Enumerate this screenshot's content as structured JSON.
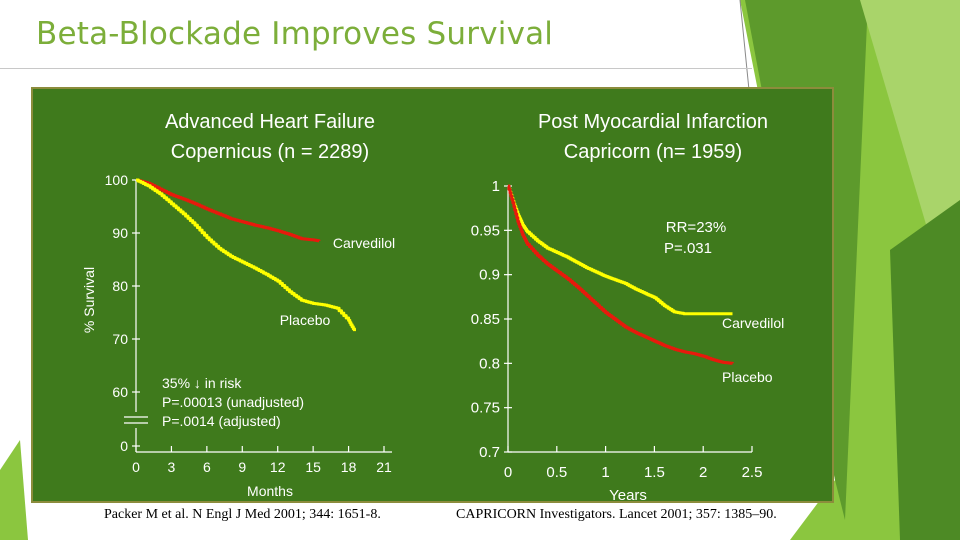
{
  "slide": {
    "title": "Beta-Blockade Improves Survival",
    "colors": {
      "title": "#7cae3a",
      "panel": "#3f7a1c",
      "carvedilol_line": "#e8190c",
      "placebo_line": "#ffff00",
      "text": "#ffffff"
    }
  },
  "chart_data": [
    {
      "type": "line",
      "title": "Advanced Heart Failure",
      "subtitle": "Copernicus (n = 2289)",
      "xlabel": "Months",
      "ylabel": "% Survival",
      "xlim": [
        0,
        21
      ],
      "ylim": [
        60,
        100
      ],
      "axis_break": true,
      "x_ticks": [
        0,
        3,
        6,
        9,
        12,
        15,
        18,
        21
      ],
      "y_ticks": [
        0,
        60,
        70,
        80,
        90,
        100
      ],
      "grid": false,
      "series": [
        {
          "name": "Carvedilol",
          "color": "#e8190c",
          "x": [
            0,
            1,
            2,
            3,
            4,
            5,
            6,
            7,
            8,
            9,
            10,
            11,
            12,
            13,
            14,
            15,
            15.5
          ],
          "y": [
            100,
            99.4,
            98.3,
            97.2,
            96.4,
            95.5,
            94.5,
            93.6,
            92.7,
            92.1,
            91.5,
            91.0,
            90.4,
            89.7,
            88.9,
            88.7,
            88.5
          ]
        },
        {
          "name": "Placebo",
          "color": "#ffff00",
          "x": [
            0,
            1,
            2,
            3,
            4,
            5,
            6,
            7,
            8,
            9,
            10,
            11,
            12,
            13,
            14,
            15,
            16,
            17,
            18,
            18.5
          ],
          "y": [
            100,
            98.9,
            97.4,
            95.5,
            93.6,
            91.5,
            89.1,
            87.1,
            85.6,
            84.5,
            83.4,
            82.2,
            80.9,
            78.9,
            77.3,
            76.7,
            76.4,
            75.8,
            73.5,
            71.5
          ]
        }
      ],
      "annotations": [
        "Carvedilol",
        "Placebo"
      ],
      "stats": {
        "line1": "35% ↓ in risk",
        "line2": "P=.00013 (unadjusted)",
        "line3": "P=.0014 (adjusted)"
      }
    },
    {
      "type": "line",
      "title": "Post Myocardial Infarction",
      "subtitle": "Capricorn (n= 1959)",
      "xlabel": "Years",
      "ylabel": "",
      "xlim": [
        0,
        2.5
      ],
      "ylim": [
        0.7,
        1
      ],
      "x_ticks": [
        "0",
        "0.5",
        "1",
        "1.5",
        "2",
        "2.5"
      ],
      "y_ticks": [
        "0.7",
        "0.75",
        "0.8",
        "0.85",
        "0.9",
        "0.95",
        "1"
      ],
      "grid": false,
      "series": [
        {
          "name": "Carvedilol",
          "color": "#ffff00",
          "x": [
            0,
            0.05,
            0.1,
            0.15,
            0.2,
            0.3,
            0.4,
            0.5,
            0.6,
            0.7,
            0.8,
            0.9,
            1.0,
            1.1,
            1.2,
            1.3,
            1.4,
            1.5,
            1.6,
            1.7,
            1.8,
            1.9,
            2.0,
            2.1,
            2.2,
            2.3
          ],
          "y": [
            1,
            0.983,
            0.968,
            0.956,
            0.948,
            0.938,
            0.93,
            0.925,
            0.92,
            0.914,
            0.908,
            0.903,
            0.898,
            0.894,
            0.89,
            0.884,
            0.879,
            0.874,
            0.865,
            0.858,
            0.856,
            0.856,
            0.856,
            0.856,
            0.856,
            0.856
          ]
        },
        {
          "name": "Placebo",
          "color": "#e8190c",
          "x": [
            0,
            0.05,
            0.1,
            0.15,
            0.2,
            0.3,
            0.4,
            0.5,
            0.6,
            0.7,
            0.8,
            0.9,
            1.0,
            1.1,
            1.2,
            1.3,
            1.4,
            1.5,
            1.6,
            1.7,
            1.8,
            1.9,
            2.0,
            2.1,
            2.2,
            2.3
          ],
          "y": [
            1,
            0.981,
            0.96,
            0.945,
            0.934,
            0.922,
            0.912,
            0.904,
            0.896,
            0.887,
            0.877,
            0.867,
            0.857,
            0.849,
            0.841,
            0.835,
            0.83,
            0.825,
            0.82,
            0.816,
            0.813,
            0.811,
            0.808,
            0.804,
            0.801,
            0.8
          ]
        }
      ],
      "annotations": [
        "Carvedilol",
        "Placebo"
      ],
      "stats": {
        "line1": "RR=23%",
        "line2": "P=.031"
      }
    }
  ],
  "references": {
    "left": "Packer M et al. N Engl J Med 2001; 344: 1651-8.",
    "right": "CAPRICORN Investigators. Lancet 2001; 357: 1385–90."
  }
}
